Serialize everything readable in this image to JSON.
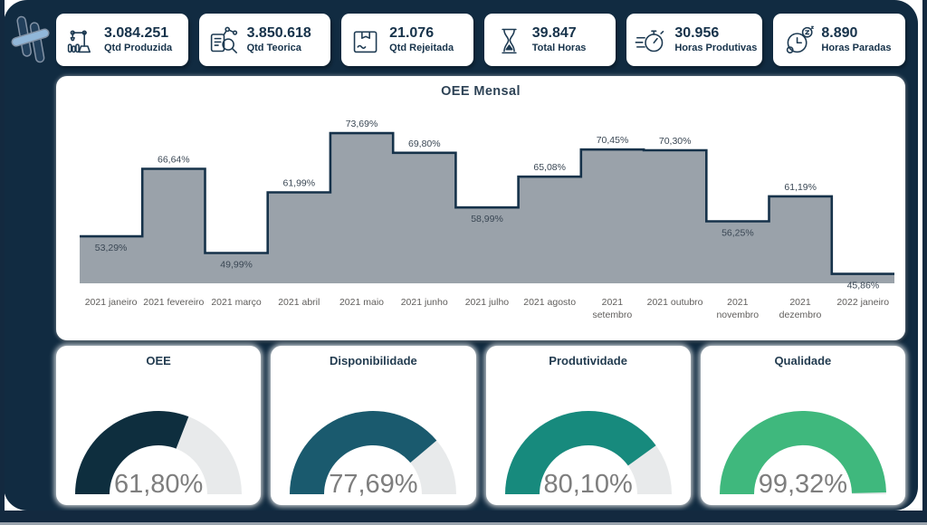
{
  "logo": {
    "icon": "propeller-logo-icon"
  },
  "kpi_cards": [
    {
      "value": "3.084.251",
      "label": "Qtd Produzida",
      "icon": "robot-arm-icon"
    },
    {
      "value": "3.850.618",
      "label": "Qtd Teorica",
      "icon": "inspection-icon"
    },
    {
      "value": "21.076",
      "label": "Qtd Rejeitada",
      "icon": "package-icon"
    },
    {
      "value": "39.847",
      "label": "Total Horas",
      "icon": "hourglass-icon"
    },
    {
      "value": "30.956",
      "label": "Horas Produtivas",
      "icon": "stopwatch-icon"
    },
    {
      "value": "8.890",
      "label": "Horas Paradas",
      "icon": "idle-clock-icon"
    }
  ],
  "chart_data": [
    {
      "type": "area-step",
      "title": "OEE Mensal",
      "categories": [
        "2021 janeiro",
        "2021 fevereiro",
        "2021 março",
        "2021 abril",
        "2021 maio",
        "2021 junho",
        "2021 julho",
        "2021 agosto",
        "2021 setembro",
        "2021 outubro",
        "2021 novembro",
        "2021 dezembro",
        "2022 janeiro"
      ],
      "tick_labels": [
        "2021 janeiro",
        "2021 fevereiro",
        "2021 março",
        "2021 abril",
        "2021 maio",
        "2021 junho",
        "2021 julho",
        "2021 agosto",
        "2021\nsetembro",
        "2021 outubro",
        "2021\nnovembro",
        "2021\ndezembro",
        "2022 janeiro"
      ],
      "values": [
        53.29,
        66.64,
        49.99,
        61.99,
        73.69,
        69.8,
        58.99,
        65.08,
        70.45,
        70.3,
        56.25,
        61.19,
        45.86
      ],
      "point_labels": [
        "53,29%",
        "66,64%",
        "49,99%",
        "61,99%",
        "73,69%",
        "69,80%",
        "58,99%",
        "65,08%",
        "70,45%",
        "70,30%",
        "56,25%",
        "61,19%",
        "45,86%"
      ],
      "ylim": [
        44,
        78
      ],
      "grid": false,
      "legend": false
    },
    {
      "type": "gauge",
      "title": "OEE",
      "value": 61.8,
      "display": "61,80%",
      "min": 0,
      "max": 100,
      "color": "#0E2E3E"
    },
    {
      "type": "gauge",
      "title": "Disponibilidade",
      "value": 77.69,
      "display": "77,69%",
      "min": 0,
      "max": 100,
      "color": "#1A5A6E"
    },
    {
      "type": "gauge",
      "title": "Produtividade",
      "value": 80.1,
      "display": "80,10%",
      "min": 0,
      "max": 100,
      "color": "#178A7D"
    },
    {
      "type": "gauge",
      "title": "Qualidade",
      "value": 99.32,
      "display": "99,32%",
      "min": 0,
      "max": 100,
      "color": "#3FB87D"
    }
  ],
  "colors": {
    "canvas": "#112B41",
    "frame": "#13293F",
    "card": "#FFFFFF",
    "navy_text": "#16324A",
    "step_fill": "#9AA2AA",
    "step_stroke": "#16324A",
    "point_label": "#3A4754",
    "tick": "#605E5C",
    "gauge_track": "#E8EAEB",
    "gauge_value": "#7E7E7E"
  }
}
